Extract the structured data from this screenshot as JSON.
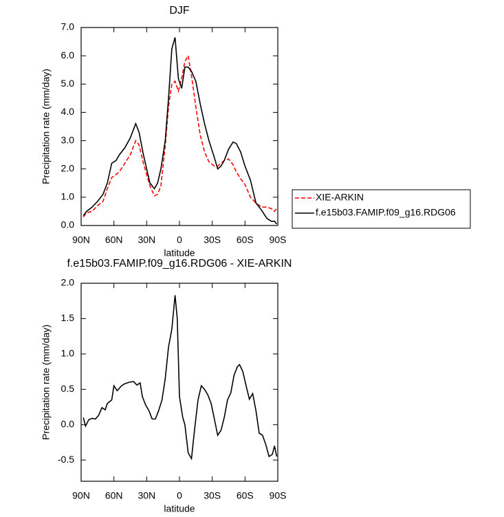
{
  "chart_data": [
    {
      "type": "line",
      "title": "DJF",
      "xlabel": "latitude",
      "ylabel": "Precipitation rate (mm/day)",
      "x": [
        88,
        85,
        80,
        75,
        70,
        66,
        62,
        58,
        55,
        50,
        45,
        40,
        37,
        33,
        30,
        27,
        23,
        20,
        17,
        13,
        10,
        7,
        4,
        1,
        -2,
        -5,
        -8,
        -11,
        -15,
        -19,
        -23,
        -27,
        -32,
        -35,
        -38,
        -41,
        -45,
        -49,
        -52,
        -56,
        -60,
        -65,
        -70,
        -75,
        -80,
        -84,
        -87,
        -89
      ],
      "series": [
        {
          "name": "XIE-ARKIN",
          "color": "#ff0000",
          "line_style": "dashed",
          "values": [
            0.3,
            0.45,
            0.5,
            0.7,
            0.85,
            1.3,
            1.7,
            1.8,
            1.9,
            2.2,
            2.5,
            3.0,
            2.85,
            2.2,
            1.8,
            1.4,
            1.05,
            1.1,
            1.4,
            2.8,
            4.2,
            5.0,
            5.1,
            4.75,
            5.2,
            5.8,
            6.0,
            5.3,
            4.2,
            3.2,
            2.6,
            2.25,
            2.1,
            2.1,
            2.2,
            2.3,
            2.35,
            2.15,
            1.9,
            1.65,
            1.45,
            1.0,
            0.8,
            0.65,
            0.65,
            0.6,
            0.5,
            0.6
          ]
        },
        {
          "name": "f.e15b03.FAMIP.f09_g16.RDG06",
          "color": "#000000",
          "line_style": "solid",
          "values": [
            0.35,
            0.5,
            0.65,
            0.85,
            1.1,
            1.5,
            2.2,
            2.3,
            2.5,
            2.75,
            3.1,
            3.6,
            3.3,
            2.5,
            2.0,
            1.5,
            1.3,
            1.5,
            2.0,
            3.0,
            4.5,
            6.25,
            6.65,
            5.2,
            4.85,
            5.6,
            5.6,
            5.45,
            5.1,
            4.3,
            3.6,
            3.0,
            2.4,
            2.0,
            2.1,
            2.3,
            2.7,
            2.95,
            2.9,
            2.6,
            2.1,
            1.6,
            0.8,
            0.55,
            0.25,
            0.15,
            0.15,
            0.05
          ]
        }
      ],
      "xlim": [
        90,
        -90
      ],
      "xticks": [
        {
          "value": 90,
          "label": "90N"
        },
        {
          "value": 60,
          "label": "60N"
        },
        {
          "value": 30,
          "label": "30N"
        },
        0,
        {
          "value": -30,
          "label": "30S"
        },
        {
          "value": -60,
          "label": "60S"
        },
        {
          "value": -90,
          "label": "90S"
        }
      ],
      "ylim": [
        0,
        7
      ],
      "yticks": [
        {
          "value": 0,
          "label": "0.0"
        },
        {
          "value": 1,
          "label": "1.0"
        },
        {
          "value": 2,
          "label": "2.0"
        },
        {
          "value": 3,
          "label": "3.0"
        },
        {
          "value": 4,
          "label": "4.0"
        },
        {
          "value": 5,
          "label": "5.0"
        },
        {
          "value": 6,
          "label": "6.0"
        },
        {
          "value": 7,
          "label": "7.0"
        }
      ],
      "legend": "right"
    },
    {
      "type": "line",
      "title": "f.e15b03.FAMIP.f09_g16.RDG06 - XIE-ARKIN",
      "xlabel": "latitude",
      "ylabel": "Precipitation rate (mm/day)",
      "x": [
        88,
        86,
        83,
        80,
        77,
        74,
        71,
        68,
        66,
        62,
        60,
        57,
        53,
        50,
        46,
        42,
        39,
        36,
        34,
        31,
        28,
        25,
        22,
        19,
        16,
        13,
        10,
        7,
        4,
        2,
        0,
        -3,
        -5,
        -8,
        -11,
        -14,
        -17,
        -20,
        -23,
        -26,
        -29,
        -32,
        -35,
        -38,
        -41,
        -44,
        -47,
        -50,
        -53,
        -55,
        -58,
        -61,
        -64,
        -67,
        -70,
        -73,
        -76,
        -79,
        -82,
        -85,
        -87,
        -89
      ],
      "series": [
        {
          "color": "#000000",
          "line_style": "solid",
          "values": [
            0.1,
            -0.02,
            0.07,
            0.09,
            0.08,
            0.13,
            0.24,
            0.21,
            0.3,
            0.35,
            0.55,
            0.48,
            0.55,
            0.58,
            0.6,
            0.61,
            0.56,
            0.59,
            0.4,
            0.28,
            0.2,
            0.08,
            0.08,
            0.2,
            0.35,
            0.65,
            1.1,
            1.35,
            1.83,
            1.5,
            0.4,
            0.1,
            0.0,
            -0.4,
            -0.48,
            -0.05,
            0.35,
            0.55,
            0.5,
            0.42,
            0.3,
            0.08,
            -0.15,
            -0.08,
            0.1,
            0.35,
            0.45,
            0.7,
            0.82,
            0.85,
            0.75,
            0.55,
            0.36,
            0.44,
            0.2,
            -0.12,
            -0.15,
            -0.28,
            -0.45,
            -0.42,
            -0.3,
            -0.45
          ]
        }
      ],
      "xlim": [
        90,
        -90
      ],
      "xticks": [
        {
          "value": 90,
          "label": "90N"
        },
        {
          "value": 60,
          "label": "60N"
        },
        {
          "value": 30,
          "label": "30N"
        },
        0,
        {
          "value": -30,
          "label": "30S"
        },
        {
          "value": -60,
          "label": "60S"
        },
        {
          "value": -90,
          "label": "90S"
        }
      ],
      "ylim": [
        -0.8,
        2.0
      ],
      "yticks": [
        -0.5,
        {
          "value": 0,
          "label": "0.0"
        },
        0.5,
        {
          "value": 1,
          "label": "1.0"
        },
        1.5,
        {
          "value": 2,
          "label": "2.0"
        }
      ]
    }
  ]
}
